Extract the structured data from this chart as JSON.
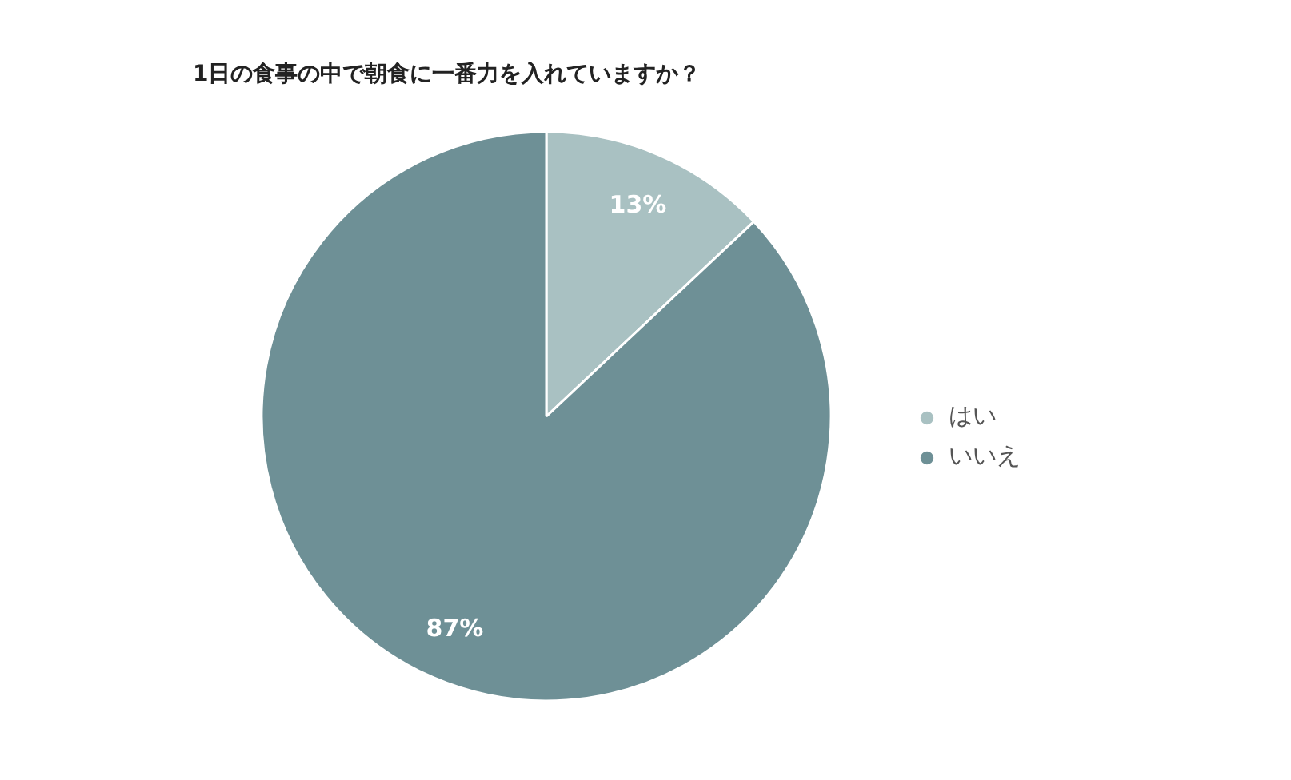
{
  "chart_data": {
    "type": "pie",
    "title": "1日の食事の中で朝食に一番力を入れていますか？",
    "categories": [
      "はい",
      "いいえ"
    ],
    "values": [
      13,
      87
    ],
    "colors": [
      "#a9c1c2",
      "#6e9096"
    ],
    "value_labels": [
      "13%",
      "87%"
    ],
    "legend": "right"
  }
}
